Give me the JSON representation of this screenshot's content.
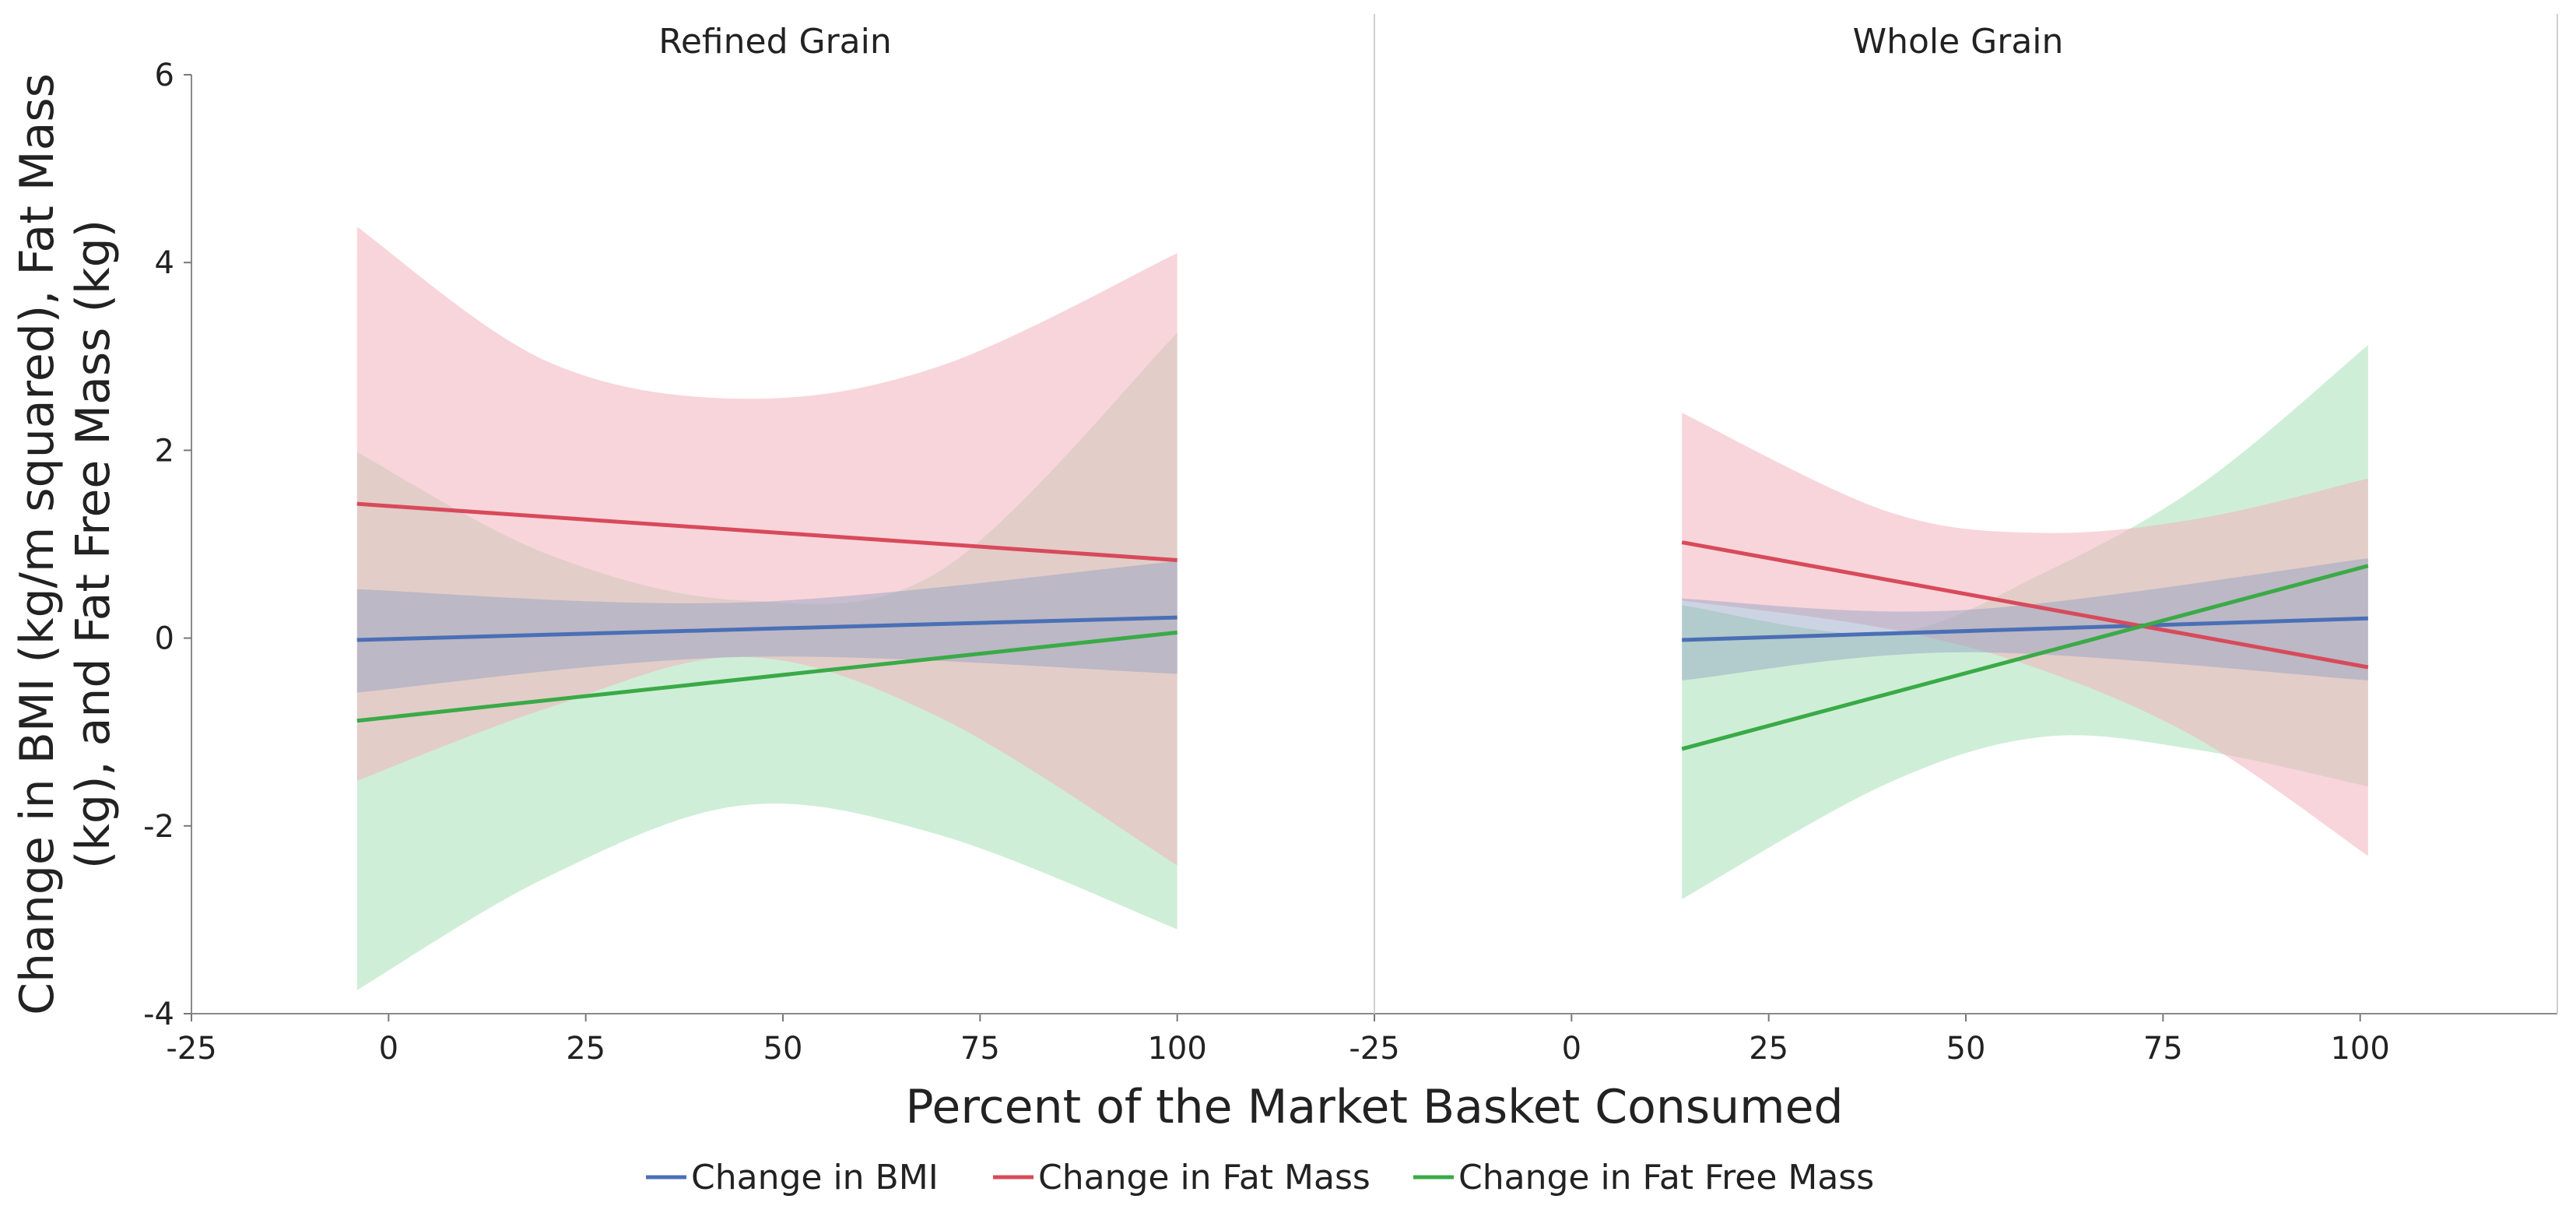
{
  "chart_data": {
    "type": "line",
    "xlabel": "Percent of the Market Basket Consumed",
    "ylabel_lines": [
      "Change in BMI (kg/m squared), Fat Mass",
      "(kg), and Fat Free Mass (kg)"
    ],
    "ylim": [
      -4,
      6
    ],
    "y_ticks": [
      "6",
      "4",
      "2",
      "0",
      "-2",
      "-4"
    ],
    "xlim": [
      -25,
      125
    ],
    "x_ticks": [
      "-25",
      "0",
      "25",
      "50",
      "75",
      "100"
    ],
    "grid": false,
    "legend_position": "bottom",
    "legend": [
      {
        "name": "Change in BMI",
        "color": "#4a6fb5"
      },
      {
        "name": "Change in Fat Mass",
        "color": "#d84a5a"
      },
      {
        "name": "Change in Fat Free Mass",
        "color": "#3aaa47"
      }
    ],
    "colors": {
      "bmi_line": "#4a6fb5",
      "fat_line": "#d84a5a",
      "ffm_line": "#3aaa47",
      "bmi_band": "#8fa0c0",
      "fat_band": "#f2b3bd",
      "ffm_band": "#a7e0b6"
    },
    "panels": [
      {
        "title": "Refined Grain",
        "x_range": [
          -4,
          100
        ],
        "series": [
          {
            "key": "ffm",
            "line": [
              -0.88,
              0.06
            ],
            "band_x": [
              -4,
              20,
              45,
              70,
              100
            ],
            "band_upper": [
              1.98,
              0.9,
              0.4,
              0.72,
              3.25
            ],
            "band_lower": [
              -3.75,
              -2.55,
              -1.78,
              -2.1,
              -3.1
            ]
          },
          {
            "key": "fat",
            "line": [
              1.43,
              0.83
            ],
            "band_x": [
              -4,
              20,
              45,
              70,
              100
            ],
            "band_upper": [
              4.38,
              2.95,
              2.55,
              2.9,
              4.1
            ],
            "band_lower": [
              -1.52,
              -0.75,
              -0.2,
              -0.85,
              -2.42
            ]
          },
          {
            "key": "bmi",
            "line": [
              -0.02,
              0.22
            ],
            "band_x": [
              -4,
              45,
              100
            ],
            "band_upper": [
              0.52,
              0.38,
              0.82
            ],
            "band_lower": [
              -0.58,
              -0.2,
              -0.38
            ]
          }
        ]
      },
      {
        "title": "Whole Grain",
        "x_range": [
          14,
          101
        ],
        "series": [
          {
            "key": "ffm",
            "line": [
              -1.18,
              0.77
            ],
            "band_x": [
              14,
              40,
              60,
              80,
              101
            ],
            "band_upper": [
              0.35,
              0.05,
              0.7,
              1.65,
              3.12
            ],
            "band_lower": [
              -2.78,
              -1.55,
              -1.05,
              -1.2,
              -1.58
            ]
          },
          {
            "key": "fat",
            "line": [
              1.02,
              -0.31
            ],
            "band_x": [
              14,
              40,
              60,
              80,
              101
            ],
            "band_upper": [
              2.4,
              1.35,
              1.12,
              1.28,
              1.7
            ],
            "band_lower": [
              0.4,
              0.1,
              -0.35,
              -1.1,
              -2.32
            ]
          },
          {
            "key": "bmi",
            "line": [
              -0.02,
              0.21
            ],
            "band_x": [
              14,
              50,
              101
            ],
            "band_upper": [
              0.42,
              0.3,
              0.85
            ],
            "band_lower": [
              -0.45,
              -0.15,
              -0.45
            ]
          }
        ]
      }
    ]
  }
}
